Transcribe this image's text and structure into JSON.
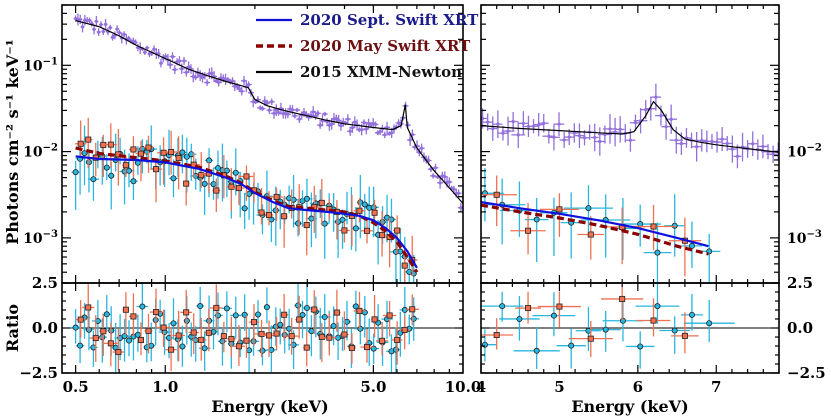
{
  "chart_data": {
    "type": "scatter",
    "y_axis_label": "Photons cm⁻² s⁻¹ keV⁻¹",
    "ratio_axis_label": "Ratio",
    "x_axis_label": "Energy  (keV)",
    "legend": [
      {
        "label": "2020 Sept. Swift XRT",
        "color": "#1010dd",
        "style": "solid"
      },
      {
        "label": "2020 May Swift XRT",
        "color": "#8b0000",
        "style": "dashed"
      },
      {
        "label": "2015 XMM-Newton",
        "color": "#000000",
        "style": "solid"
      }
    ],
    "colors": {
      "xmm_points": "#9370DB",
      "swift_sept_points": "#29b6e0",
      "swift_may_points": "#f07050",
      "sept_model": "#1010dd",
      "may_model": "#8b0000",
      "xmm_model": "#000000"
    },
    "left": {
      "x_scale": "log",
      "xlim": [
        0.45,
        10.0
      ],
      "ylim": [
        0.0003,
        0.5
      ],
      "x_ticks": [
        {
          "v": 0.5,
          "label": "0.5"
        },
        {
          "v": 1.0,
          "label": "1.0"
        },
        {
          "v": 5.0,
          "label": "5.0"
        },
        {
          "v": 10.0,
          "label": "10.0"
        }
      ],
      "y_ticks": [
        {
          "v": 0.1,
          "base": "10",
          "exp": "−1"
        },
        {
          "v": 0.01,
          "base": "10",
          "exp": "−2"
        },
        {
          "v": 0.001,
          "base": "10",
          "exp": "−3"
        }
      ],
      "xmm_model": [
        [
          0.5,
          0.33
        ],
        [
          0.6,
          0.28
        ],
        [
          0.7,
          0.22
        ],
        [
          0.8,
          0.17
        ],
        [
          1.0,
          0.12
        ],
        [
          1.2,
          0.09
        ],
        [
          1.4,
          0.075
        ],
        [
          1.6,
          0.065
        ],
        [
          1.8,
          0.058
        ],
        [
          1.9,
          0.055
        ],
        [
          2.0,
          0.04
        ],
        [
          2.2,
          0.034
        ],
        [
          2.5,
          0.03
        ],
        [
          3.0,
          0.026
        ],
        [
          3.5,
          0.023
        ],
        [
          4.0,
          0.021
        ],
        [
          5.0,
          0.019
        ],
        [
          5.8,
          0.018
        ],
        [
          6.2,
          0.02
        ],
        [
          6.4,
          0.035
        ],
        [
          6.5,
          0.019
        ],
        [
          7.0,
          0.011
        ],
        [
          8.0,
          0.006
        ],
        [
          9.0,
          0.0038
        ],
        [
          10.0,
          0.0025
        ]
      ],
      "sept_model": [
        [
          0.5,
          0.0088
        ],
        [
          0.6,
          0.0082
        ],
        [
          0.8,
          0.008
        ],
        [
          1.0,
          0.0075
        ],
        [
          1.3,
          0.0063
        ],
        [
          1.6,
          0.005
        ],
        [
          1.8,
          0.0042
        ],
        [
          2.0,
          0.0033
        ],
        [
          2.3,
          0.0026
        ],
        [
          2.6,
          0.0022
        ],
        [
          3.0,
          0.0021
        ],
        [
          3.5,
          0.002
        ],
        [
          4.0,
          0.0019
        ],
        [
          4.5,
          0.0018
        ],
        [
          5.0,
          0.0016
        ],
        [
          5.5,
          0.0013
        ],
        [
          6.0,
          0.001
        ],
        [
          6.5,
          0.0007
        ],
        [
          7.0,
          0.00045
        ]
      ],
      "may_model": [
        [
          0.5,
          0.011
        ],
        [
          0.6,
          0.0095
        ],
        [
          0.8,
          0.0085
        ],
        [
          1.0,
          0.0078
        ],
        [
          1.3,
          0.0066
        ],
        [
          1.6,
          0.0052
        ],
        [
          1.8,
          0.0043
        ],
        [
          2.0,
          0.0034
        ],
        [
          2.3,
          0.0027
        ],
        [
          2.6,
          0.0023
        ],
        [
          3.0,
          0.0022
        ],
        [
          3.5,
          0.0021
        ],
        [
          4.0,
          0.002
        ],
        [
          4.5,
          0.0018
        ],
        [
          5.0,
          0.0015
        ],
        [
          5.5,
          0.0012
        ],
        [
          6.0,
          0.0009
        ],
        [
          6.5,
          0.0006
        ],
        [
          7.0,
          0.0004
        ]
      ]
    },
    "right": {
      "x_scale": "linear",
      "xlim": [
        4.0,
        7.8
      ],
      "ylim": [
        0.0003,
        0.5
      ],
      "x_ticks": [
        {
          "v": 4.0,
          "label": "4"
        },
        {
          "v": 5.0,
          "label": "5"
        },
        {
          "v": 6.0,
          "label": "6"
        },
        {
          "v": 7.0,
          "label": "7"
        }
      ],
      "y_ticks": [
        {
          "v": 0.01,
          "base": "10",
          "exp": "−2"
        },
        {
          "v": 0.001,
          "base": "10",
          "exp": "−3"
        }
      ],
      "xmm_model": [
        [
          4.0,
          0.02
        ],
        [
          4.5,
          0.0185
        ],
        [
          5.0,
          0.0175
        ],
        [
          5.5,
          0.0165
        ],
        [
          5.8,
          0.016
        ],
        [
          5.95,
          0.017
        ],
        [
          6.1,
          0.026
        ],
        [
          6.2,
          0.038
        ],
        [
          6.3,
          0.03
        ],
        [
          6.45,
          0.018
        ],
        [
          6.6,
          0.014
        ],
        [
          6.8,
          0.0128
        ],
        [
          7.0,
          0.012
        ],
        [
          7.4,
          0.0108
        ],
        [
          7.8,
          0.0098
        ]
      ],
      "sept_model": [
        [
          4.0,
          0.0026
        ],
        [
          4.5,
          0.0022
        ],
        [
          5.0,
          0.0019
        ],
        [
          5.5,
          0.0016
        ],
        [
          6.0,
          0.0013
        ],
        [
          6.5,
          0.001
        ],
        [
          6.9,
          0.0008
        ]
      ],
      "may_model": [
        [
          4.0,
          0.0024
        ],
        [
          4.5,
          0.002
        ],
        [
          5.0,
          0.0017
        ],
        [
          5.5,
          0.0014
        ],
        [
          6.0,
          0.0011
        ],
        [
          6.5,
          0.0008
        ],
        [
          6.9,
          0.00065
        ]
      ]
    },
    "ratio": {
      "ylim": [
        -2.5,
        2.5
      ],
      "y_ticks": [
        {
          "v": 2.5,
          "label": "2.5"
        },
        {
          "v": 0.0,
          "label": "0.0"
        },
        {
          "v": -2.5,
          "label": "−2.5"
        }
      ]
    }
  }
}
